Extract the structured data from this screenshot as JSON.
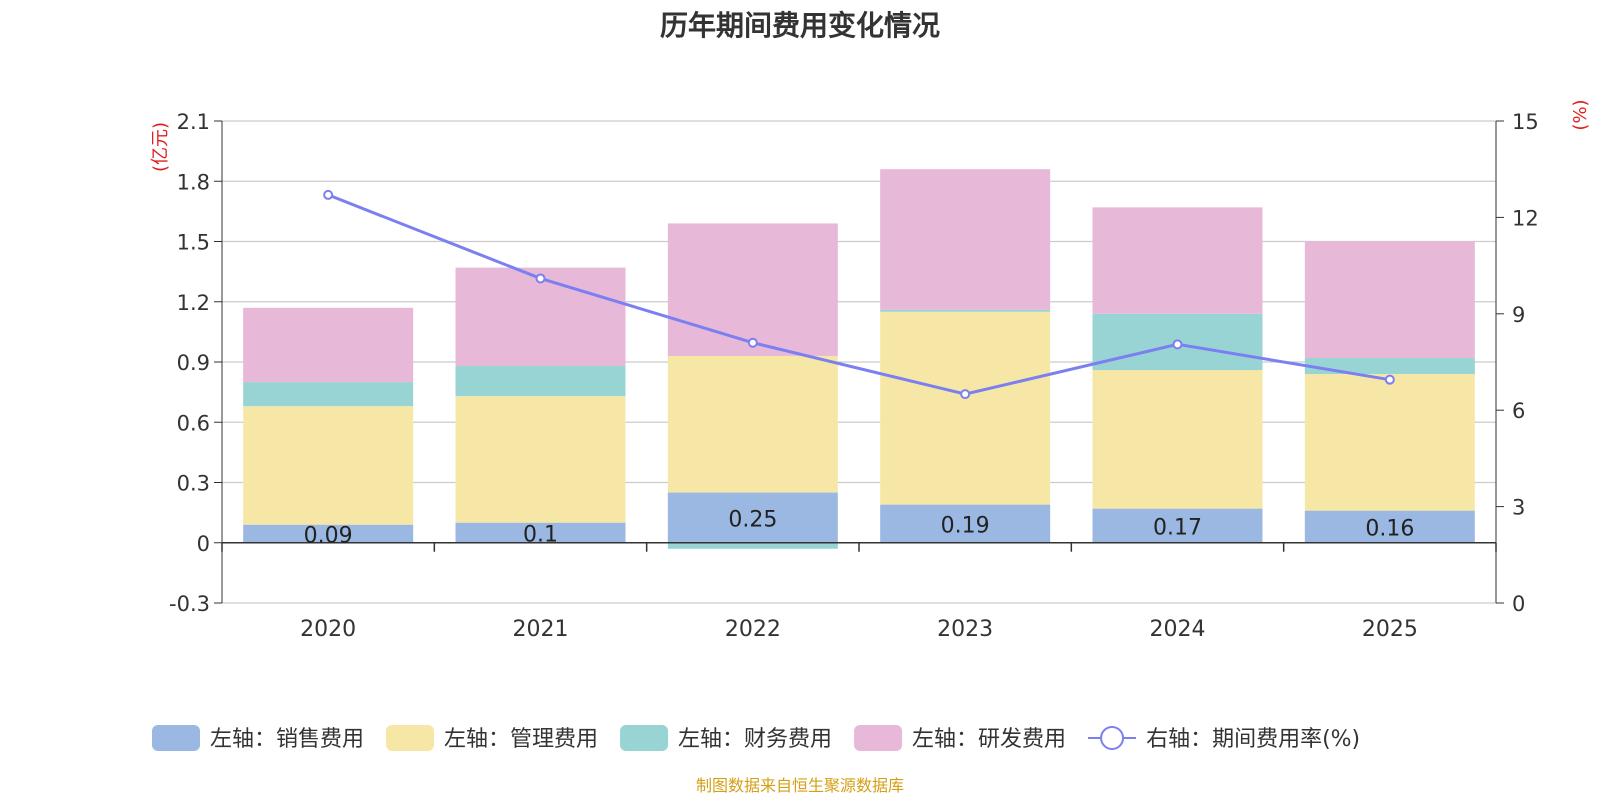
{
  "chart_data": {
    "type": "bar",
    "title": "历年期间费用变化情况",
    "source": "制图数据来自恒生聚源数据库",
    "categories": [
      "2020",
      "2021",
      "2022",
      "2023",
      "2024",
      "2025"
    ],
    "left_axis": {
      "unit": "(亿元)",
      "ylim": [
        -0.3,
        2.1
      ],
      "ticks": [
        -0.3,
        0,
        0.3,
        0.6,
        0.9,
        1.2,
        1.5,
        1.8,
        2.1
      ],
      "tick_labels": [
        "-0.3",
        "0",
        "0.3",
        "0.6",
        "0.9",
        "1.2",
        "1.5",
        "1.8",
        "2.1"
      ]
    },
    "right_axis": {
      "unit": "(%)",
      "ylim": [
        0,
        15
      ],
      "ticks": [
        0,
        3,
        6,
        9,
        12,
        15
      ],
      "tick_labels": [
        "0",
        "3",
        "6",
        "9",
        "12",
        "15"
      ]
    },
    "series": [
      {
        "name": "左轴：销售费用",
        "color": "#9bb8e2",
        "axis": "left",
        "values": [
          0.09,
          0.1,
          0.25,
          0.19,
          0.17,
          0.16
        ],
        "labels": [
          "0.09",
          "0.1",
          "0.25",
          "0.19",
          "0.17",
          "0.16"
        ]
      },
      {
        "name": "左轴：管理费用",
        "color": "#f7e7a6",
        "axis": "left",
        "values": [
          0.59,
          0.63,
          0.68,
          0.96,
          0.69,
          0.68
        ]
      },
      {
        "name": "左轴：财务费用",
        "color": "#98d4d4",
        "axis": "left",
        "values": [
          0.12,
          0.15,
          -0.03,
          0.01,
          0.28,
          0.08
        ]
      },
      {
        "name": "左轴：研发费用",
        "color": "#e8b8d8",
        "axis": "left",
        "values": [
          0.37,
          0.49,
          0.66,
          0.7,
          0.53,
          0.58
        ]
      },
      {
        "name": "右轴：期间费用率(%)",
        "color": "#7b7ff0",
        "axis": "right",
        "type": "line",
        "values": [
          12.7,
          10.1,
          8.1,
          6.5,
          8.05,
          6.95
        ]
      }
    ]
  }
}
